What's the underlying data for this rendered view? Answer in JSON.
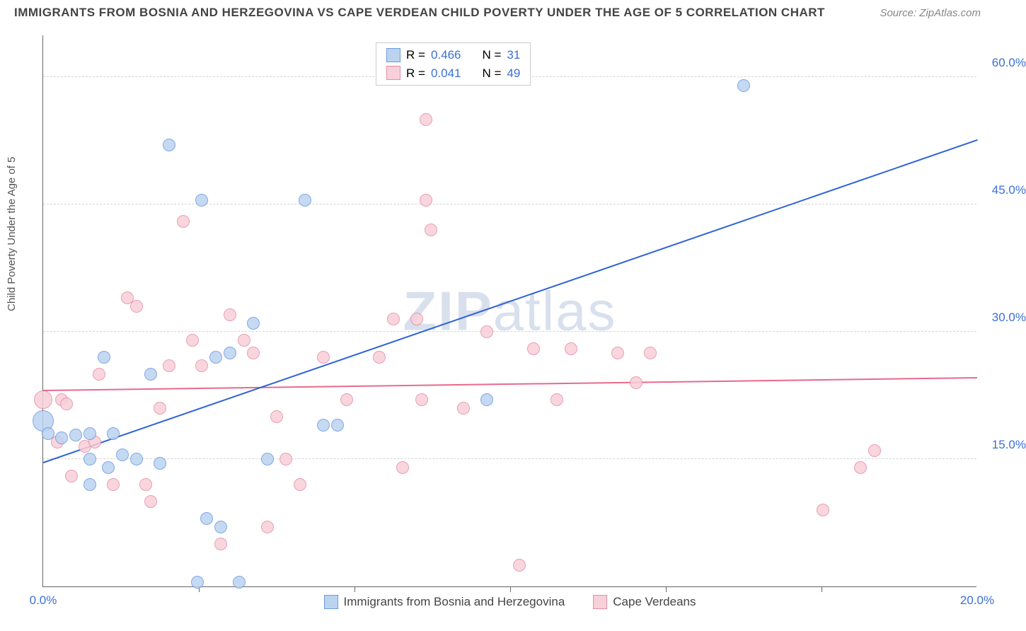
{
  "header": {
    "title": "IMMIGRANTS FROM BOSNIA AND HERZEGOVINA VS CAPE VERDEAN CHILD POVERTY UNDER THE AGE OF 5 CORRELATION CHART",
    "source": "Source: ZipAtlas.com"
  },
  "watermark": {
    "left": "ZIP",
    "right": "atlas"
  },
  "ylabel": "Child Poverty Under the Age of 5",
  "legend_top": {
    "series": [
      {
        "r_label": "R =",
        "r": "0.466",
        "n_label": "N =",
        "n": "31"
      },
      {
        "r_label": "R =",
        "r": "0.041",
        "n_label": "N =",
        "n": "49"
      }
    ]
  },
  "legend_bottom": {
    "items": [
      {
        "label": "Immigrants from Bosnia and Herzegovina"
      },
      {
        "label": "Cape Verdeans"
      }
    ]
  },
  "chart": {
    "xlim": [
      0,
      20
    ],
    "ylim": [
      0,
      65
    ],
    "xticks": [
      0,
      20
    ],
    "xtick_labels": [
      "0.0%",
      "20.0%"
    ],
    "xtick_minor": [
      3.33,
      6.67,
      10,
      13.33,
      16.67
    ],
    "yticks": [
      15,
      30,
      45,
      60
    ],
    "ytick_labels": [
      "15.0%",
      "30.0%",
      "45.0%",
      "60.0%"
    ],
    "background_color": "#ffffff",
    "grid_color": "#d5d5d5",
    "point_radius": 9,
    "point_stroke_width": 1.5,
    "colors": {
      "blue_fill": "#bcd3f0",
      "blue_stroke": "#6a9ae0",
      "pink_fill": "#f8d0d9",
      "pink_stroke": "#e58ea5",
      "blue_line": "#2e63d6",
      "pink_line": "#e76a8d"
    },
    "series_blue": {
      "trend": {
        "x1": 0,
        "y1": 14.5,
        "x2": 20,
        "y2": 52.5
      },
      "points": [
        {
          "x": 0.0,
          "y": 19.5,
          "r": 15
        },
        {
          "x": 0.1,
          "y": 18,
          "r": 9
        },
        {
          "x": 0.4,
          "y": 17.5,
          "r": 9
        },
        {
          "x": 0.7,
          "y": 17.8,
          "r": 9
        },
        {
          "x": 1.0,
          "y": 18,
          "r": 9
        },
        {
          "x": 1.0,
          "y": 12,
          "r": 9
        },
        {
          "x": 1.0,
          "y": 15,
          "r": 9
        },
        {
          "x": 1.3,
          "y": 27,
          "r": 9
        },
        {
          "x": 1.4,
          "y": 14,
          "r": 9
        },
        {
          "x": 1.5,
          "y": 18,
          "r": 9
        },
        {
          "x": 1.7,
          "y": 15.5,
          "r": 9
        },
        {
          "x": 2.0,
          "y": 15,
          "r": 9
        },
        {
          "x": 2.3,
          "y": 25,
          "r": 9
        },
        {
          "x": 2.5,
          "y": 14.5,
          "r": 9
        },
        {
          "x": 2.7,
          "y": 52,
          "r": 9
        },
        {
          "x": 3.3,
          "y": 0.5,
          "r": 9
        },
        {
          "x": 3.4,
          "y": 45.5,
          "r": 9
        },
        {
          "x": 3.5,
          "y": 8,
          "r": 9
        },
        {
          "x": 3.7,
          "y": 27,
          "r": 9
        },
        {
          "x": 3.8,
          "y": 7,
          "r": 9
        },
        {
          "x": 4.0,
          "y": 27.5,
          "r": 9
        },
        {
          "x": 4.2,
          "y": 0.5,
          "r": 9
        },
        {
          "x": 4.5,
          "y": 31,
          "r": 9
        },
        {
          "x": 4.8,
          "y": 15,
          "r": 9
        },
        {
          "x": 5.6,
          "y": 45.5,
          "r": 9
        },
        {
          "x": 6.0,
          "y": 19,
          "r": 9
        },
        {
          "x": 6.3,
          "y": 19,
          "r": 9
        },
        {
          "x": 9.5,
          "y": 22,
          "r": 9
        },
        {
          "x": 15.0,
          "y": 59,
          "r": 9
        }
      ]
    },
    "series_pink": {
      "trend": {
        "x1": 0,
        "y1": 23,
        "x2": 20,
        "y2": 24.5
      },
      "points": [
        {
          "x": 0.0,
          "y": 22,
          "r": 13
        },
        {
          "x": 0.3,
          "y": 17,
          "r": 9
        },
        {
          "x": 0.4,
          "y": 22,
          "r": 9
        },
        {
          "x": 0.5,
          "y": 21.5,
          "r": 9
        },
        {
          "x": 0.6,
          "y": 13,
          "r": 9
        },
        {
          "x": 0.9,
          "y": 16.5,
          "r": 9
        },
        {
          "x": 1.1,
          "y": 17,
          "r": 9
        },
        {
          "x": 1.2,
          "y": 25,
          "r": 9
        },
        {
          "x": 1.5,
          "y": 12,
          "r": 9
        },
        {
          "x": 1.8,
          "y": 34,
          "r": 9
        },
        {
          "x": 2.0,
          "y": 33,
          "r": 9
        },
        {
          "x": 2.2,
          "y": 12,
          "r": 9
        },
        {
          "x": 2.3,
          "y": 10,
          "r": 9
        },
        {
          "x": 2.5,
          "y": 21,
          "r": 9
        },
        {
          "x": 2.7,
          "y": 26,
          "r": 9
        },
        {
          "x": 3.0,
          "y": 43,
          "r": 9
        },
        {
          "x": 3.2,
          "y": 29,
          "r": 9
        },
        {
          "x": 3.4,
          "y": 26,
          "r": 9
        },
        {
          "x": 3.8,
          "y": 5,
          "r": 9
        },
        {
          "x": 4.0,
          "y": 32,
          "r": 9
        },
        {
          "x": 4.3,
          "y": 29,
          "r": 9
        },
        {
          "x": 4.5,
          "y": 27.5,
          "r": 9
        },
        {
          "x": 4.8,
          "y": 7,
          "r": 9
        },
        {
          "x": 5.0,
          "y": 20,
          "r": 9
        },
        {
          "x": 5.2,
          "y": 15,
          "r": 9
        },
        {
          "x": 5.5,
          "y": 12,
          "r": 9
        },
        {
          "x": 6.0,
          "y": 27,
          "r": 9
        },
        {
          "x": 6.5,
          "y": 22,
          "r": 9
        },
        {
          "x": 7.2,
          "y": 27,
          "r": 9
        },
        {
          "x": 7.5,
          "y": 31.5,
          "r": 9
        },
        {
          "x": 7.7,
          "y": 14,
          "r": 9
        },
        {
          "x": 8.0,
          "y": 31.5,
          "r": 9
        },
        {
          "x": 8.1,
          "y": 22,
          "r": 9
        },
        {
          "x": 8.2,
          "y": 55,
          "r": 9
        },
        {
          "x": 8.3,
          "y": 42,
          "r": 9
        },
        {
          "x": 8.2,
          "y": 45.5,
          "r": 9
        },
        {
          "x": 9.0,
          "y": 21,
          "r": 9
        },
        {
          "x": 9.5,
          "y": 30,
          "r": 9
        },
        {
          "x": 10.2,
          "y": 2.5,
          "r": 9
        },
        {
          "x": 10.5,
          "y": 28,
          "r": 9
        },
        {
          "x": 11.0,
          "y": 22,
          "r": 9
        },
        {
          "x": 11.3,
          "y": 28,
          "r": 9
        },
        {
          "x": 12.3,
          "y": 27.5,
          "r": 9
        },
        {
          "x": 12.7,
          "y": 24,
          "r": 9
        },
        {
          "x": 13.0,
          "y": 27.5,
          "r": 9
        },
        {
          "x": 16.7,
          "y": 9,
          "r": 9
        },
        {
          "x": 17.5,
          "y": 14,
          "r": 9
        },
        {
          "x": 17.8,
          "y": 16,
          "r": 9
        }
      ]
    }
  }
}
